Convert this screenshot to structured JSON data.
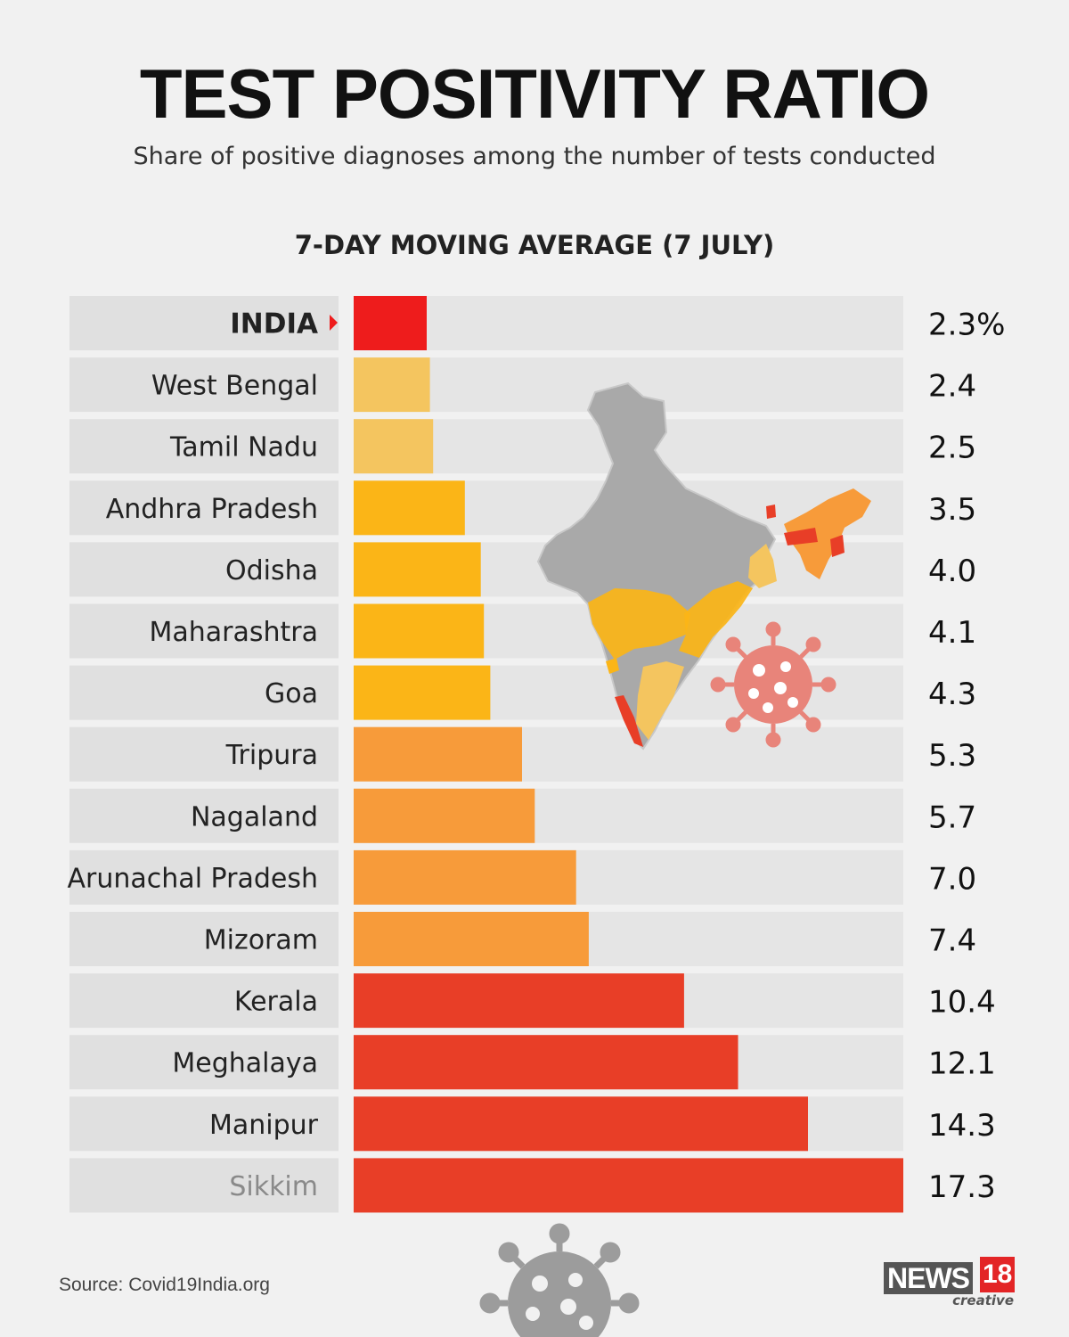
{
  "header": {
    "title": "TEST POSITIVITY RATIO",
    "subtitle": "Share of positive diagnoses among the number of tests conducted"
  },
  "chart_data": {
    "type": "bar",
    "orientation": "horizontal",
    "title": "7-DAY MOVING AVERAGE (7 JULY)",
    "unit": "%",
    "categories": [
      "INDIA",
      "West Bengal",
      "Tamil Nadu",
      "Andhra Pradesh",
      "Odisha",
      "Maharashtra",
      "Goa",
      "Tripura",
      "Nagaland",
      "Arunachal Pradesh",
      "Mizoram",
      "Kerala",
      "Meghalaya",
      "Manipur",
      "Sikkim"
    ],
    "values": [
      2.3,
      2.4,
      2.5,
      3.5,
      4.0,
      4.1,
      4.3,
      5.3,
      5.7,
      7.0,
      7.4,
      10.4,
      12.1,
      14.3,
      17.3
    ],
    "value_labels": [
      "2.3%",
      "2.4",
      "2.5",
      "3.5",
      "4.0",
      "4.1",
      "4.3",
      "5.3",
      "5.7",
      "7.0",
      "7.4",
      "10.4",
      "12.1",
      "14.3",
      "17.3"
    ],
    "xlim": [
      0,
      17.3
    ],
    "highlight": "INDIA",
    "colors": {
      "india": "#ee1c1c",
      "tier_low": "#f4c55f",
      "tier_mid": "#fbb517",
      "tier_high": "#f79b3a",
      "tier_top": "#e83e27"
    }
  },
  "footer": {
    "source": "Source: Covid19India.org",
    "brand_word": "NEWS",
    "brand_number": "18",
    "brand_tag": "creative"
  }
}
